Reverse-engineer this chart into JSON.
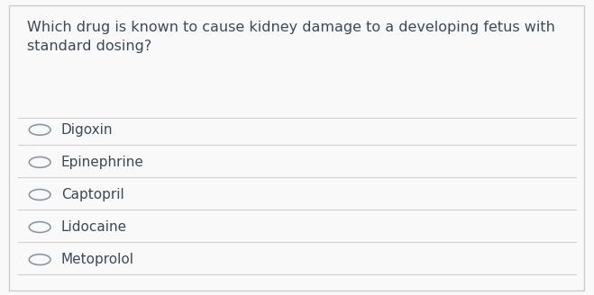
{
  "question": "Which drug is known to cause kidney damage to a developing fetus with\nstandard dosing?",
  "options": [
    "Digoxin",
    "Epinephrine",
    "Captopril",
    "Lidocaine",
    "Metoprolol"
  ],
  "bg_color": "#f9f9f9",
  "border_color": "#cccccc",
  "text_color": "#3a4a5a",
  "line_color": "#d0d0d0",
  "circle_color": "#8899aa",
  "question_fontsize": 11.5,
  "option_fontsize": 11.0,
  "fig_width": 6.59,
  "fig_height": 3.28
}
